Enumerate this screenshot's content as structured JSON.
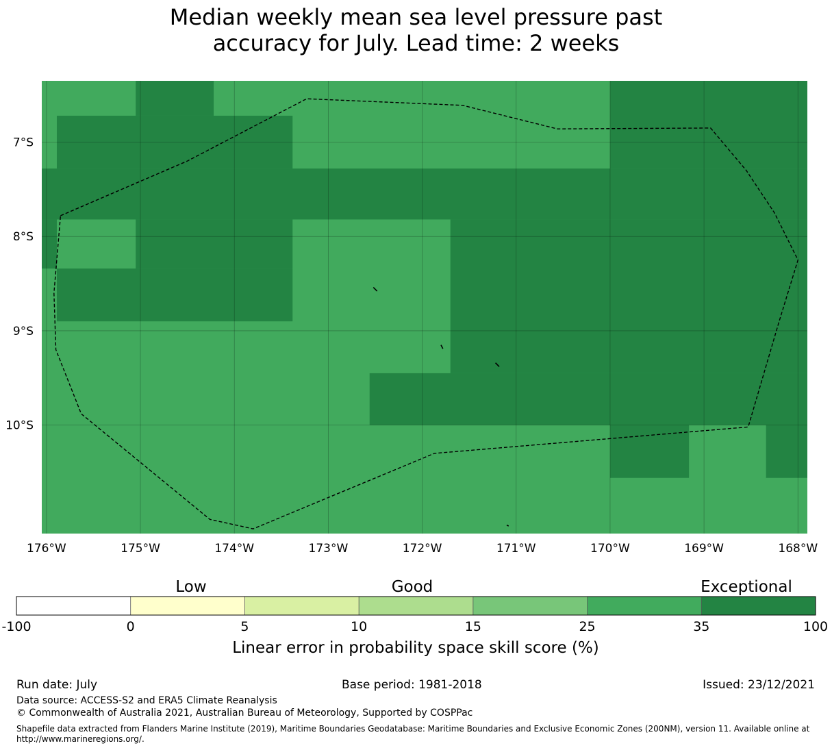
{
  "title_line1": "Median weekly mean sea level pressure past",
  "title_line2": "accuracy for July. Lead time: 2 weeks",
  "map": {
    "lon_range": [
      -176.05,
      -167.9
    ],
    "lat_range": [
      -11.15,
      -6.35
    ],
    "lon_ticks": [
      {
        "value": -176,
        "label": "176°W"
      },
      {
        "value": -175,
        "label": "175°W"
      },
      {
        "value": -174,
        "label": "174°W"
      },
      {
        "value": -173,
        "label": "173°W"
      },
      {
        "value": -172,
        "label": "172°W"
      },
      {
        "value": -171,
        "label": "171°W"
      },
      {
        "value": -170,
        "label": "170°W"
      },
      {
        "value": -169,
        "label": "169°W"
      },
      {
        "value": -168,
        "label": "168°W"
      }
    ],
    "lat_ticks": [
      {
        "value": -7,
        "label": "7°S"
      },
      {
        "value": -8,
        "label": "8°S"
      },
      {
        "value": -9,
        "label": "9°S"
      },
      {
        "value": -10,
        "label": "10°S"
      }
    ],
    "background_color": "#41aa5d",
    "cells": [
      {
        "lon": [
          -175.05,
          -174.22
        ],
        "lat": [
          -6.72,
          -6.35
        ],
        "color": "#238443"
      },
      {
        "lon": [
          -175.89,
          -173.38
        ],
        "lat": [
          -7.28,
          -6.72
        ],
        "color": "#238443"
      },
      {
        "lon": [
          -176.05,
          -167.9
        ],
        "lat": [
          -7.82,
          -7.28
        ],
        "color": "#238443"
      },
      {
        "lon": [
          -176.05,
          -175.89
        ],
        "lat": [
          -8.34,
          -7.82
        ],
        "color": "#238443"
      },
      {
        "lon": [
          -175.05,
          -173.38
        ],
        "lat": [
          -8.34,
          -7.82
        ],
        "color": "#238443"
      },
      {
        "lon": [
          -175.89,
          -173.38
        ],
        "lat": [
          -8.9,
          -8.34
        ],
        "color": "#238443"
      },
      {
        "lon": [
          -171.7,
          -167.9
        ],
        "lat": [
          -9.45,
          -7.82
        ],
        "color": "#238443"
      },
      {
        "lon": [
          -172.56,
          -167.9
        ],
        "lat": [
          -10.0,
          -9.45
        ],
        "color": "#238443"
      },
      {
        "lon": [
          -170.0,
          -167.9
        ],
        "lat": [
          -7.28,
          -6.35
        ],
        "color": "#238443"
      },
      {
        "lon": [
          -170.0,
          -169.16
        ],
        "lat": [
          -10.56,
          -10.0
        ],
        "color": "#238443"
      },
      {
        "lon": [
          -168.34,
          -167.9
        ],
        "lat": [
          -10.56,
          -10.0
        ],
        "color": "#238443"
      }
    ],
    "eez_boundary": [
      [
        -175.85,
        -7.78
      ],
      [
        -174.5,
        -7.2
      ],
      [
        -173.23,
        -6.54
      ],
      [
        -171.57,
        -6.61
      ],
      [
        -170.56,
        -6.86
      ],
      [
        -168.93,
        -6.85
      ],
      [
        -168.55,
        -7.3
      ],
      [
        -168.25,
        -7.75
      ],
      [
        -168.0,
        -8.25
      ],
      [
        -168.2,
        -8.9
      ],
      [
        -168.53,
        -10.02
      ],
      [
        -171.87,
        -10.3
      ],
      [
        -173.8,
        -11.1
      ],
      [
        -174.26,
        -11.0
      ],
      [
        -175.63,
        -9.88
      ],
      [
        -175.9,
        -9.2
      ],
      [
        -175.92,
        -8.6
      ],
      [
        -175.85,
        -7.78
      ]
    ],
    "islands": [
      [
        [
          -172.52,
          -8.54
        ],
        [
          -172.48,
          -8.58
        ]
      ],
      [
        [
          -171.8,
          -9.15
        ],
        [
          -171.78,
          -9.19
        ]
      ],
      [
        [
          -171.22,
          -9.34
        ],
        [
          -171.18,
          -9.38
        ]
      ],
      [
        [
          -171.1,
          -11.06
        ],
        [
          -171.08,
          -11.07
        ]
      ]
    ]
  },
  "colorbar": {
    "category_labels": [
      "Low",
      "Good",
      "Exceptional"
    ],
    "segments": [
      {
        "from": "-100",
        "to": "0",
        "color": "#ffffff"
      },
      {
        "from": "0",
        "to": "5",
        "color": "#ffffcc"
      },
      {
        "from": "5",
        "to": "10",
        "color": "#d9f0a3"
      },
      {
        "from": "10",
        "to": "15",
        "color": "#addd8e"
      },
      {
        "from": "15",
        "to": "25",
        "color": "#78c679"
      },
      {
        "from": "25",
        "to": "35",
        "color": "#41ab5d"
      },
      {
        "from": "35",
        "to": "100",
        "color": "#238443"
      }
    ],
    "tick_labels": [
      "-100",
      "0",
      "5",
      "10",
      "15",
      "25",
      "35",
      "100"
    ],
    "label": "Linear error in probability space skill score (%)"
  },
  "footer": {
    "run_date": "Run date: July",
    "base_period": "Base period: 1981-2018",
    "issued": "Issued: 23/12/2021",
    "data_source": "Data source: ACCESS-S2 and ERA5 Climate Reanalysis",
    "copyright": "© Commonwealth of Australia 2021, Australian Bureau of Meteorology, Supported by COSPPac",
    "shapefile_line1": "Shapefile data extracted from Flanders Marine Institute (2019), Maritime Boundaries Geodatabase: Maritime Boundaries and Exclusive Economic Zones (200NM), version 11. Available online at",
    "shapefile_line2": "http://www.marineregions.org/."
  }
}
